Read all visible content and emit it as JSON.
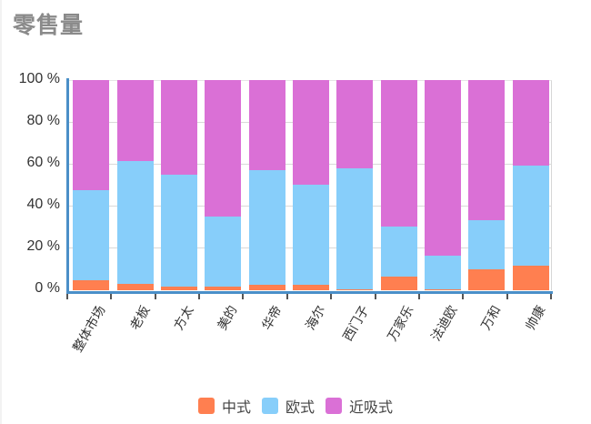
{
  "title": "零售量",
  "colors": {
    "zhongshi": "#FF7F50",
    "oushi": "#87CEFA",
    "jinxishi": "#DA70D6",
    "axis": "#4A8FC8"
  },
  "y_axis": {
    "ticks": [
      "100 %",
      "80 %",
      "60 %",
      "40 %",
      "20 %",
      "0 %"
    ]
  },
  "legend": [
    {
      "label": "中式",
      "color": "#FF7F50"
    },
    {
      "label": "欧式",
      "color": "#87CEFA"
    },
    {
      "label": "近吸式",
      "color": "#DA70D6"
    }
  ],
  "chart_data": {
    "type": "bar",
    "stacked": true,
    "normalized": true,
    "title": "零售量",
    "xlabel": "",
    "ylabel": "",
    "ylim": [
      0,
      100
    ],
    "y_tick_labels": [
      "0 %",
      "20 %",
      "40 %",
      "60 %",
      "80 %",
      "100 %"
    ],
    "grid": true,
    "legend_position": "bottom",
    "categories": [
      "整体市场",
      "老板",
      "方太",
      "美的",
      "华帝",
      "海尔",
      "西门子",
      "万家乐",
      "法迪欧",
      "万和",
      "帅康"
    ],
    "series": [
      {
        "name": "中式",
        "color": "#FF7F50",
        "values": [
          4.8,
          3.0,
          1.7,
          1.7,
          2.6,
          2.6,
          0.5,
          6.5,
          0.3,
          10.0,
          11.7
        ]
      },
      {
        "name": "欧式",
        "color": "#87CEFA",
        "values": [
          42.8,
          58.5,
          53.3,
          33.3,
          54.4,
          47.6,
          57.5,
          23.8,
          16.2,
          23.3,
          47.6
        ]
      },
      {
        "name": "近吸式",
        "color": "#DA70D6",
        "values": [
          52.4,
          38.5,
          45.0,
          65.0,
          43.0,
          49.8,
          42.0,
          69.7,
          83.5,
          66.7,
          40.7
        ]
      }
    ]
  }
}
